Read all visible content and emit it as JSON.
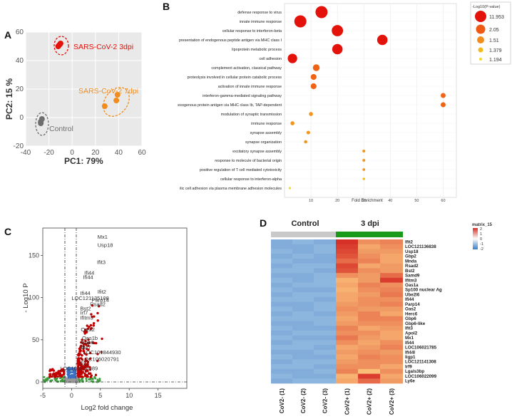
{
  "panels": {
    "a": "A",
    "b": "B",
    "c": "C",
    "d": "D"
  },
  "colors": {
    "red": "#e3120b",
    "orange": "#f28c1c",
    "grey": "#707070",
    "bg": "#ebebeb",
    "green": "#1a9a1a",
    "blue": "#3a7ec4"
  },
  "chart_data": [
    {
      "type": "scatter",
      "panel": "A",
      "xlabel": "PC1: 79%",
      "ylabel": "PC2: 15 %",
      "xlim": [
        -40,
        60
      ],
      "ylim": [
        -20,
        60
      ],
      "xticks": [
        -40,
        -20,
        0,
        20,
        40,
        60
      ],
      "yticks": [
        -20,
        0,
        20,
        40,
        60
      ],
      "groups": [
        {
          "name": "SARS-CoV-2 3dpi",
          "color": "#e3120b",
          "points": [
            [
              -12,
              50
            ],
            [
              -10,
              52
            ],
            [
              -11,
              51
            ]
          ]
        },
        {
          "name": "SARS-CoV-2 7dpi",
          "color": "#f28c1c",
          "points": [
            [
              28,
              8
            ],
            [
              38,
              12
            ],
            [
              39,
              16
            ]
          ]
        },
        {
          "name": "Control",
          "color": "#6e6e6e",
          "points": [
            [
              -27,
              -3
            ],
            [
              -26,
              -1
            ],
            [
              -27,
              -4
            ]
          ]
        }
      ]
    },
    {
      "type": "dot",
      "panel": "B",
      "xlabel": "Fold Enrichment",
      "xlim": [
        0,
        65
      ],
      "xticks": [
        10,
        20,
        30,
        40,
        50,
        60
      ],
      "legend_title": "-Log10(P-value)",
      "legend": [
        {
          "label": "11.953",
          "color": "#e3120b"
        },
        {
          "label": "2.05",
          "color": "#ee5a14"
        },
        {
          "label": "1.51",
          "color": "#f28c1c"
        },
        {
          "label": "1.379",
          "color": "#f3b91c"
        },
        {
          "label": "1.194",
          "color": "#f5dc2c"
        }
      ],
      "terms": [
        {
          "label": "defense response to virus",
          "fe": 14,
          "size": 11.953
        },
        {
          "label": "innate immune response",
          "fe": 6,
          "size": 11.9
        },
        {
          "label": "cellular response to interferon-beta",
          "fe": 20,
          "size": 11
        },
        {
          "label": "presentation of endogenous peptide antigen via MHC class I",
          "fe": 37,
          "size": 10
        },
        {
          "label": "lipoprotein metabolic process",
          "fe": 20,
          "size": 10
        },
        {
          "label": "cell adhesion",
          "fe": 3,
          "size": 9
        },
        {
          "label": "complement activation, classical pathway",
          "fe": 12,
          "size": 6
        },
        {
          "label": "proteolysis involved in cellular protein catabolic process",
          "fe": 11,
          "size": 5
        },
        {
          "label": "activation of innate immune response",
          "fe": 11,
          "size": 5
        },
        {
          "label": "interferon-gamma-mediated signaling pathway",
          "fe": 60,
          "size": 4
        },
        {
          "label": "exogenous protein antigen via MHC class Ib, TAP-dependent",
          "fe": 60,
          "size": 4
        },
        {
          "label": "modulation of synaptic transmission",
          "fe": 10,
          "size": 3
        },
        {
          "label": "immune response",
          "fe": 3,
          "size": 3
        },
        {
          "label": "synapse assembly",
          "fe": 9,
          "size": 2.6
        },
        {
          "label": "synapse organization",
          "fe": 8,
          "size": 2.2
        },
        {
          "label": "excitatory synapse assembly",
          "fe": 30,
          "size": 1.8
        },
        {
          "label": "response to molecule of bacterial origin",
          "fe": 30,
          "size": 1.7
        },
        {
          "label": "positive regulation of T cell mediated cytotoxicity",
          "fe": 30,
          "size": 1.6
        },
        {
          "label": "cellular response to interferon-alpha",
          "fe": 30,
          "size": 1.379
        },
        {
          "label": "ilic cell adhesion via plasma membrane adhesion molecules",
          "fe": 2,
          "size": 1.194
        }
      ]
    },
    {
      "type": "scatter",
      "panel": "C",
      "xlabel": "Log2 fold change",
      "ylabel": "- Log10 P",
      "xlim": [
        -5,
        20
      ],
      "ylim": [
        0,
        180
      ],
      "xticks": [
        -5,
        0,
        5,
        10,
        15
      ],
      "yticks": [
        0,
        50,
        100,
        150
      ],
      "labels": [
        {
          "text": "Mx1",
          "x": 4.5,
          "y": 170
        },
        {
          "text": "Usp18",
          "x": 4.5,
          "y": 160
        },
        {
          "text": "Ifit3",
          "x": 4.4,
          "y": 140
        },
        {
          "text": "Ifi44",
          "x": 2.2,
          "y": 127
        },
        {
          "text": "Ifi44",
          "x": 2,
          "y": 122
        },
        {
          "text": "Ifi44",
          "x": 1.5,
          "y": 103
        },
        {
          "text": "Ifit2",
          "x": 4.5,
          "y": 105
        },
        {
          "text": "LOC121135108",
          "x": 0,
          "y": 97
        },
        {
          "text": "Parp14",
          "x": 3.5,
          "y": 95
        },
        {
          "text": "Rsad2",
          "x": 3.2,
          "y": 90
        },
        {
          "text": "Bst2",
          "x": 1.5,
          "y": 85
        },
        {
          "text": "Irf7",
          "x": 1.5,
          "y": 80
        },
        {
          "text": "Ifitm3",
          "x": 1.5,
          "y": 74
        },
        {
          "text": "Oasl2",
          "x": 1.6,
          "y": 60
        },
        {
          "text": "Oas1b",
          "x": 1.8,
          "y": 50
        },
        {
          "text": "Gbp6",
          "x": 1.6,
          "y": 45
        },
        {
          "text": "Ifi47",
          "x": 1.6,
          "y": 39
        },
        {
          "text": "LOC101844930",
          "x": 2,
          "y": 33
        },
        {
          "text": "LOC106020791",
          "x": 1.7,
          "y": 25
        },
        {
          "text": "Ifi27",
          "x": 1.3,
          "y": 20
        },
        {
          "text": "LOC101844989",
          "x": -2,
          "y": 14
        }
      ]
    },
    {
      "type": "heatmap",
      "panel": "D",
      "group_labels": [
        "Control",
        "3 dpi"
      ],
      "columns": [
        "CoV2- (1)",
        "CoV2- (2)",
        "CoV2- (3)",
        "CoV2+ (1)",
        "CoV2+ (2)",
        "CoV2+ (3)"
      ],
      "legend_title": "matrix_15",
      "legend_ticks": [
        "2",
        "1",
        "0",
        "-1",
        "-2"
      ],
      "rows": [
        "Ifit2",
        "LOC121136838",
        "Usp18",
        "Gbp2",
        "Mnda",
        "Rsad2",
        "Bst2",
        "Samd9",
        "Ifitm3",
        "Oas1a",
        "Sp100 nuclear Ag",
        "Ube2l6",
        "Ifi44",
        "Parp14",
        "Oas2",
        "Herc6",
        "Gbp6",
        "Gbp6-like",
        "Ifit3",
        "Apol2",
        "Mx1",
        "Ifi44",
        "LOC106021785",
        "Ifi44l",
        "Iigp1",
        "LOC121141308",
        "Irf9",
        "Lgals3bp",
        "LOC106022099",
        "Ly6e"
      ]
    }
  ]
}
